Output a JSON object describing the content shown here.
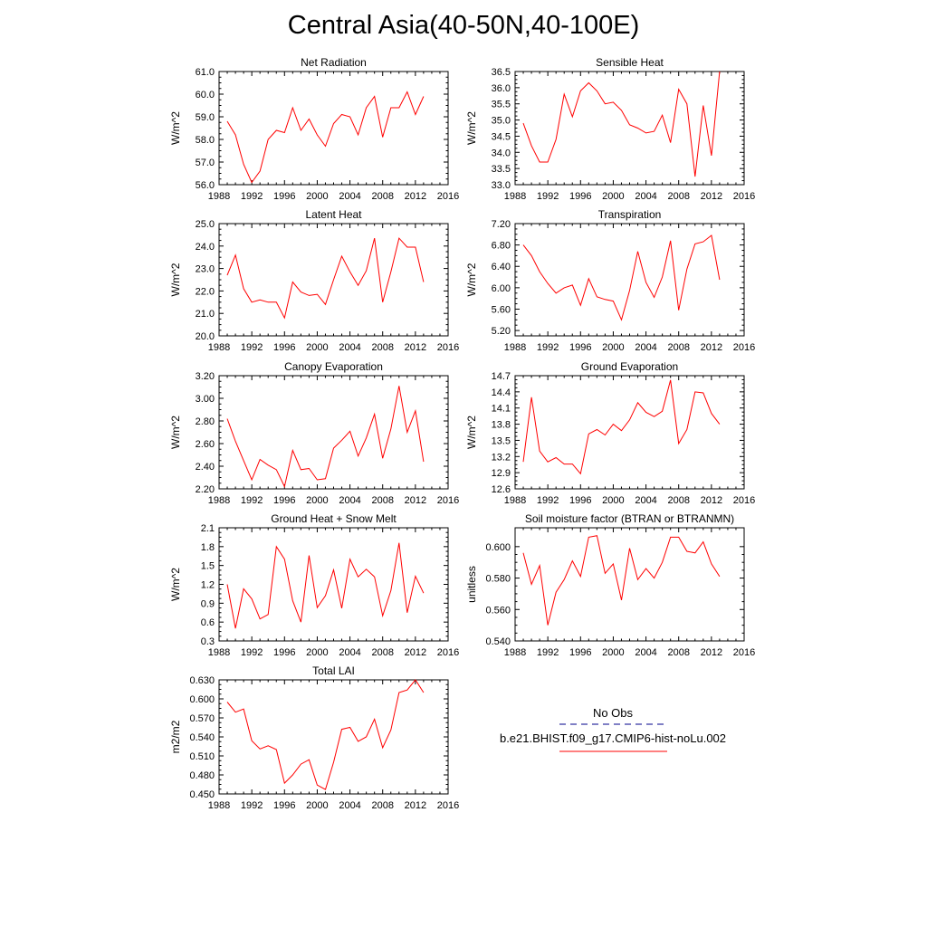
{
  "title": "Central Asia(40-50N,40-100E)",
  "colors": {
    "model": "#ff0000",
    "obs": "#00008b",
    "axis": "#000000"
  },
  "chart_data": [
    {
      "type": "line",
      "title": "Net Radiation",
      "ylabel": "W/m^2",
      "xlim": [
        1988,
        2016
      ],
      "xticks": [
        1988,
        1992,
        1996,
        2000,
        2004,
        2008,
        2012,
        2016
      ],
      "ylim": [
        56.0,
        61.0
      ],
      "yticks": [
        "56.0",
        "57.0",
        "58.0",
        "59.0",
        "60.0",
        "61.0"
      ],
      "x": [
        1989,
        1990,
        1991,
        1992,
        1993,
        1994,
        1995,
        1996,
        1997,
        1998,
        1999,
        2000,
        2001,
        2002,
        2003,
        2004,
        2005,
        2006,
        2007,
        2008,
        2009,
        2010,
        2011,
        2012,
        2013
      ],
      "values": [
        58.8,
        58.2,
        56.9,
        56.1,
        56.6,
        58.0,
        58.4,
        58.3,
        59.4,
        58.4,
        58.9,
        58.2,
        57.7,
        58.7,
        59.1,
        59.0,
        58.2,
        59.4,
        59.9,
        58.1,
        59.4,
        59.4,
        60.1,
        59.1,
        59.9
      ]
    },
    {
      "type": "line",
      "title": "Sensible Heat",
      "ylabel": "W/m^2",
      "xlim": [
        1988,
        2016
      ],
      "xticks": [
        1988,
        1992,
        1996,
        2000,
        2004,
        2008,
        2012,
        2016
      ],
      "ylim": [
        33.0,
        36.5
      ],
      "yticks": [
        "33.0",
        "33.5",
        "34.0",
        "34.5",
        "35.0",
        "35.5",
        "36.0",
        "36.5"
      ],
      "x": [
        1989,
        1990,
        1991,
        1992,
        1993,
        1994,
        1995,
        1996,
        1997,
        1998,
        1999,
        2000,
        2001,
        2002,
        2003,
        2004,
        2005,
        2006,
        2007,
        2008,
        2009,
        2010,
        2011,
        2012,
        2013
      ],
      "values": [
        34.9,
        34.2,
        33.7,
        33.7,
        34.4,
        35.8,
        35.1,
        35.9,
        36.15,
        35.9,
        35.5,
        35.55,
        35.3,
        34.85,
        34.75,
        34.6,
        34.65,
        35.15,
        34.3,
        35.95,
        35.5,
        33.25,
        35.45,
        33.9,
        36.5
      ]
    },
    {
      "type": "line",
      "title": "Latent Heat",
      "ylabel": "W/m^2",
      "xlim": [
        1988,
        2016
      ],
      "xticks": [
        1988,
        1992,
        1996,
        2000,
        2004,
        2008,
        2012,
        2016
      ],
      "ylim": [
        20.0,
        25.0
      ],
      "yticks": [
        "20.0",
        "21.0",
        "22.0",
        "23.0",
        "24.0",
        "25.0"
      ],
      "x": [
        1989,
        1990,
        1991,
        1992,
        1993,
        1994,
        1995,
        1996,
        1997,
        1998,
        1999,
        2000,
        2001,
        2002,
        2003,
        2004,
        2005,
        2006,
        2007,
        2008,
        2009,
        2010,
        2011,
        2012,
        2013
      ],
      "values": [
        22.7,
        23.6,
        22.1,
        21.5,
        21.6,
        21.5,
        21.5,
        20.8,
        22.4,
        21.95,
        21.8,
        21.85,
        21.4,
        22.5,
        23.55,
        22.85,
        22.25,
        22.9,
        24.35,
        21.5,
        22.85,
        24.35,
        23.95,
        23.95,
        22.4
      ]
    },
    {
      "type": "line",
      "title": "Transpiration",
      "ylabel": "W/m^2",
      "xlim": [
        1988,
        2016
      ],
      "xticks": [
        1988,
        1992,
        1996,
        2000,
        2004,
        2008,
        2012,
        2016
      ],
      "ylim": [
        5.1,
        7.2
      ],
      "yticks": [
        "5.20",
        "5.60",
        "6.00",
        "6.40",
        "6.80",
        "7.20"
      ],
      "x": [
        1989,
        1990,
        1991,
        1992,
        1993,
        1994,
        1995,
        1996,
        1997,
        1998,
        1999,
        2000,
        2001,
        2002,
        2003,
        2004,
        2005,
        2006,
        2007,
        2008,
        2009,
        2010,
        2011,
        2012,
        2013
      ],
      "values": [
        6.8,
        6.6,
        6.3,
        6.08,
        5.9,
        6.0,
        6.05,
        5.67,
        6.17,
        5.83,
        5.78,
        5.75,
        5.4,
        5.95,
        6.68,
        6.1,
        5.82,
        6.2,
        6.88,
        5.58,
        6.35,
        6.82,
        6.86,
        6.98,
        6.15
      ]
    },
    {
      "type": "line",
      "title": "Canopy Evaporation",
      "ylabel": "W/m^2",
      "xlim": [
        1988,
        2016
      ],
      "xticks": [
        1988,
        1992,
        1996,
        2000,
        2004,
        2008,
        2012,
        2016
      ],
      "ylim": [
        2.2,
        3.2
      ],
      "yticks": [
        "2.20",
        "2.40",
        "2.60",
        "2.80",
        "3.00",
        "3.20"
      ],
      "x": [
        1989,
        1990,
        1991,
        1992,
        1993,
        1994,
        1995,
        1996,
        1997,
        1998,
        1999,
        2000,
        2001,
        2002,
        2003,
        2004,
        2005,
        2006,
        2007,
        2008,
        2009,
        2010,
        2011,
        2012,
        2013
      ],
      "values": [
        2.82,
        2.62,
        2.45,
        2.28,
        2.46,
        2.41,
        2.37,
        2.22,
        2.54,
        2.37,
        2.38,
        2.28,
        2.29,
        2.56,
        2.63,
        2.71,
        2.49,
        2.65,
        2.86,
        2.47,
        2.73,
        3.11,
        2.7,
        2.89,
        2.44
      ]
    },
    {
      "type": "line",
      "title": "Ground Evaporation",
      "ylabel": "W/m^2",
      "xlim": [
        1988,
        2016
      ],
      "xticks": [
        1988,
        1992,
        1996,
        2000,
        2004,
        2008,
        2012,
        2016
      ],
      "ylim": [
        12.6,
        14.7
      ],
      "yticks": [
        "12.6",
        "12.9",
        "13.2",
        "13.5",
        "13.8",
        "14.1",
        "14.4",
        "14.7"
      ],
      "x": [
        1989,
        1990,
        1991,
        1992,
        1993,
        1994,
        1995,
        1996,
        1997,
        1998,
        1999,
        2000,
        2001,
        2002,
        2003,
        2004,
        2005,
        2006,
        2007,
        2008,
        2009,
        2010,
        2011,
        2012,
        2013
      ],
      "values": [
        13.1,
        14.3,
        13.3,
        13.1,
        13.18,
        13.06,
        13.06,
        12.88,
        13.62,
        13.7,
        13.6,
        13.8,
        13.68,
        13.88,
        14.2,
        14.02,
        13.94,
        14.04,
        14.62,
        13.44,
        13.7,
        14.4,
        14.38,
        14.0,
        13.8
      ]
    },
    {
      "type": "line",
      "title": "Ground Heat + Snow Melt",
      "ylabel": "W/m^2",
      "xlim": [
        1988,
        2016
      ],
      "xticks": [
        1988,
        1992,
        1996,
        2000,
        2004,
        2008,
        2012,
        2016
      ],
      "ylim": [
        0.3,
        2.1
      ],
      "yticks": [
        "0.3",
        "0.6",
        "0.9",
        "1.2",
        "1.5",
        "1.8",
        "2.1"
      ],
      "x": [
        1989,
        1990,
        1991,
        1992,
        1993,
        1994,
        1995,
        1996,
        1997,
        1998,
        1999,
        2000,
        2001,
        2002,
        2003,
        2004,
        2005,
        2006,
        2007,
        2008,
        2009,
        2010,
        2011,
        2012,
        2013
      ],
      "values": [
        1.2,
        0.5,
        1.13,
        0.97,
        0.65,
        0.72,
        1.8,
        1.6,
        0.94,
        0.6,
        1.66,
        0.83,
        1.02,
        1.43,
        0.82,
        1.6,
        1.32,
        1.44,
        1.32,
        0.7,
        1.1,
        1.86,
        0.75,
        1.33,
        1.06
      ]
    },
    {
      "type": "line",
      "title": "Soil moisture factor (BTRAN or BTRANMN)",
      "ylabel": "unitless",
      "xlim": [
        1988,
        2016
      ],
      "xticks": [
        1988,
        1992,
        1996,
        2000,
        2004,
        2008,
        2012,
        2016
      ],
      "ylim": [
        0.54,
        0.612
      ],
      "yticks": [
        "0.540",
        "0.560",
        "0.580",
        "0.600"
      ],
      "x": [
        1989,
        1990,
        1991,
        1992,
        1993,
        1994,
        1995,
        1996,
        1997,
        1998,
        1999,
        2000,
        2001,
        2002,
        2003,
        2004,
        2005,
        2006,
        2007,
        2008,
        2009,
        2010,
        2011,
        2012,
        2013
      ],
      "values": [
        0.596,
        0.576,
        0.588,
        0.55,
        0.571,
        0.579,
        0.591,
        0.581,
        0.606,
        0.607,
        0.583,
        0.589,
        0.566,
        0.599,
        0.579,
        0.586,
        0.58,
        0.59,
        0.606,
        0.606,
        0.597,
        0.596,
        0.603,
        0.589,
        0.581
      ]
    },
    {
      "type": "line",
      "title": "Total LAI",
      "ylabel": "m2/m2",
      "xlim": [
        1988,
        2016
      ],
      "xticks": [
        1988,
        1992,
        1996,
        2000,
        2004,
        2008,
        2012,
        2016
      ],
      "ylim": [
        0.45,
        0.63
      ],
      "yticks": [
        "0.450",
        "0.480",
        "0.510",
        "0.540",
        "0.570",
        "0.600",
        "0.630"
      ],
      "x": [
        1989,
        1990,
        1991,
        1992,
        1993,
        1994,
        1995,
        1996,
        1997,
        1998,
        1999,
        2000,
        2001,
        2002,
        2003,
        2004,
        2005,
        2006,
        2007,
        2008,
        2009,
        2010,
        2011,
        2012,
        2013
      ],
      "values": [
        0.595,
        0.579,
        0.584,
        0.534,
        0.521,
        0.526,
        0.52,
        0.467,
        0.48,
        0.497,
        0.504,
        0.464,
        0.457,
        0.5,
        0.552,
        0.555,
        0.533,
        0.54,
        0.568,
        0.523,
        0.551,
        0.61,
        0.614,
        0.63,
        0.61
      ]
    }
  ],
  "legend": {
    "obs_label": "No Obs",
    "model_label": "b.e21.BHIST.f09_g17.CMIP6-hist-noLu.002"
  }
}
